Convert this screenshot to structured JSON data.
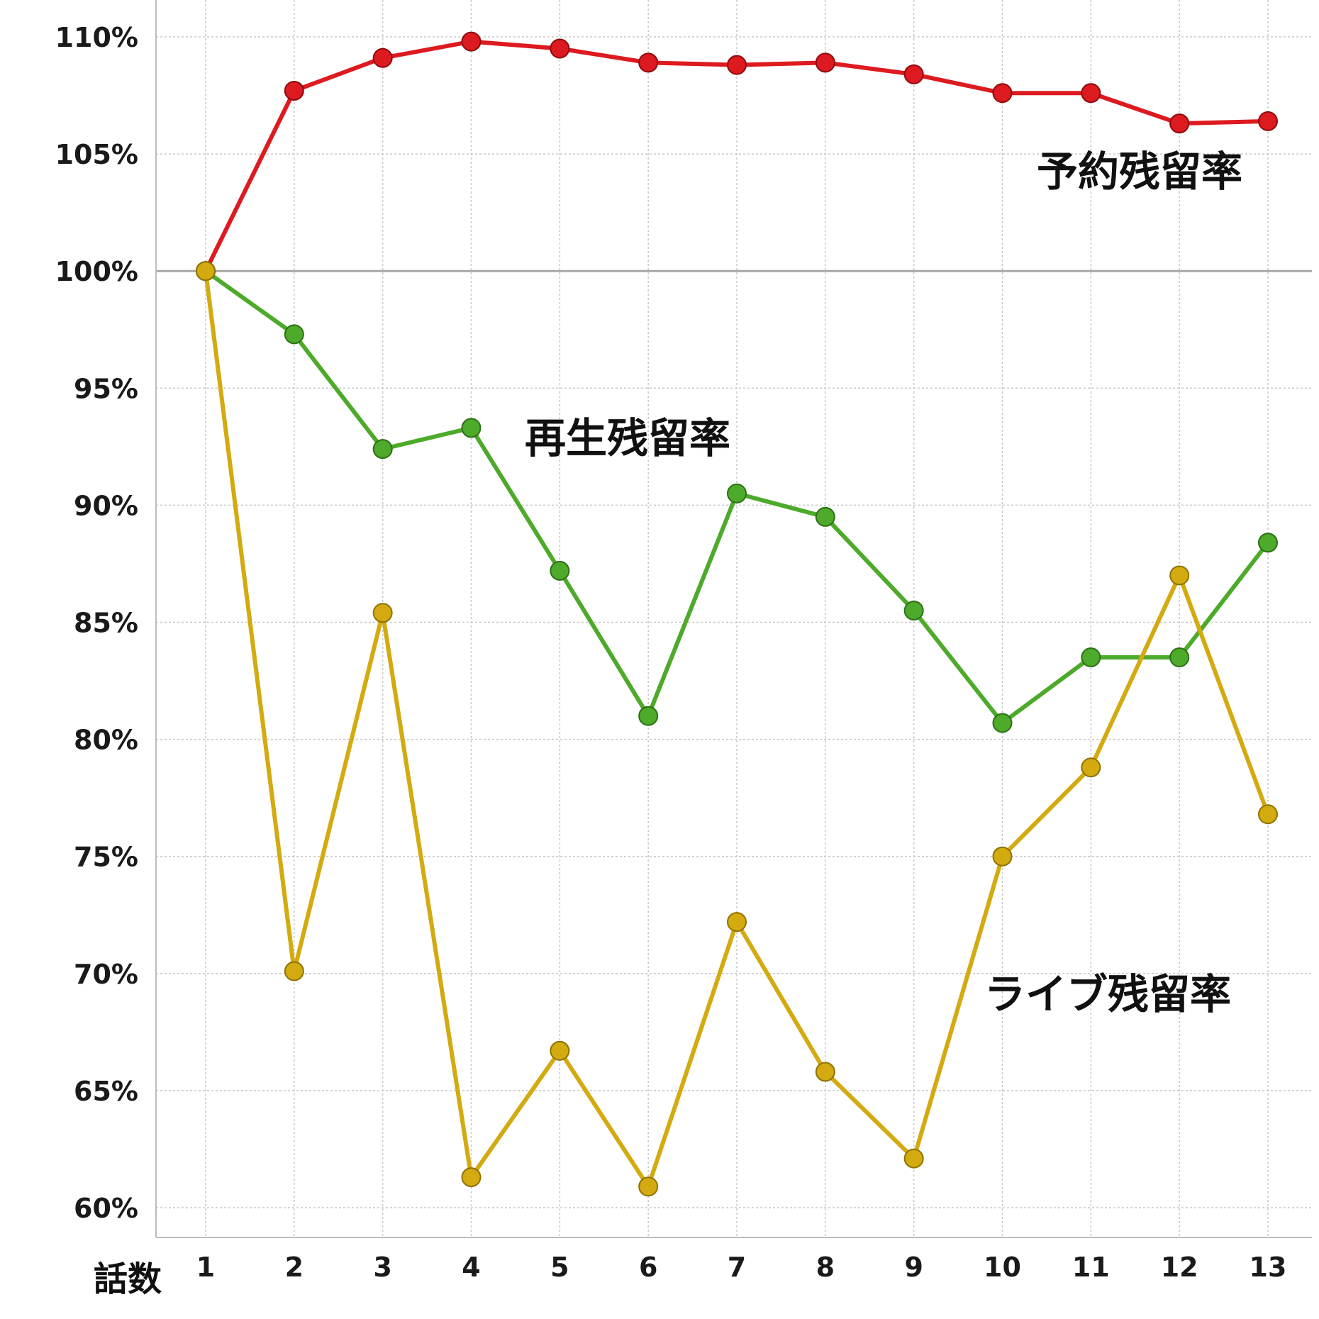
{
  "chart_data": {
    "type": "line",
    "title": "",
    "xlabel": "話数",
    "ylabel": "",
    "categories": [
      "1",
      "2",
      "3",
      "4",
      "5",
      "6",
      "7",
      "8",
      "9",
      "10",
      "11",
      "12",
      "13"
    ],
    "ylim": [
      0.585,
      1.115
    ],
    "yticks": [
      0.6,
      0.65,
      0.7,
      0.75,
      0.8,
      0.85,
      0.9,
      0.95,
      1.0,
      1.05,
      1.1
    ],
    "ytick_labels": [
      "60%",
      "65%",
      "70%",
      "75%",
      "80%",
      "85%",
      "90%",
      "95%",
      "100%",
      "105%",
      "110%"
    ],
    "grid": true,
    "reference_line": 1.0,
    "series": [
      {
        "name": "予約残留率",
        "color": "#dd1a1f",
        "values": [
          1.0,
          1.077,
          1.091,
          1.098,
          1.095,
          1.089,
          1.088,
          1.089,
          1.084,
          1.076,
          1.076,
          1.063,
          1.064
        ]
      },
      {
        "name": "再生残留率",
        "color": "#4daa2a",
        "values": [
          1.0,
          0.973,
          0.924,
          0.933,
          0.872,
          0.81,
          0.905,
          0.895,
          0.855,
          0.807,
          0.835,
          0.835,
          0.884
        ]
      },
      {
        "name": "ライブ残留率",
        "color": "#d3aa10",
        "values": [
          1.0,
          0.701,
          0.854,
          0.613,
          0.667,
          0.609,
          0.722,
          0.658,
          0.621,
          0.75,
          0.788,
          0.87,
          0.768
        ]
      }
    ],
    "label_placement": [
      "upper-right",
      "upper-middle",
      "lower-right"
    ]
  }
}
